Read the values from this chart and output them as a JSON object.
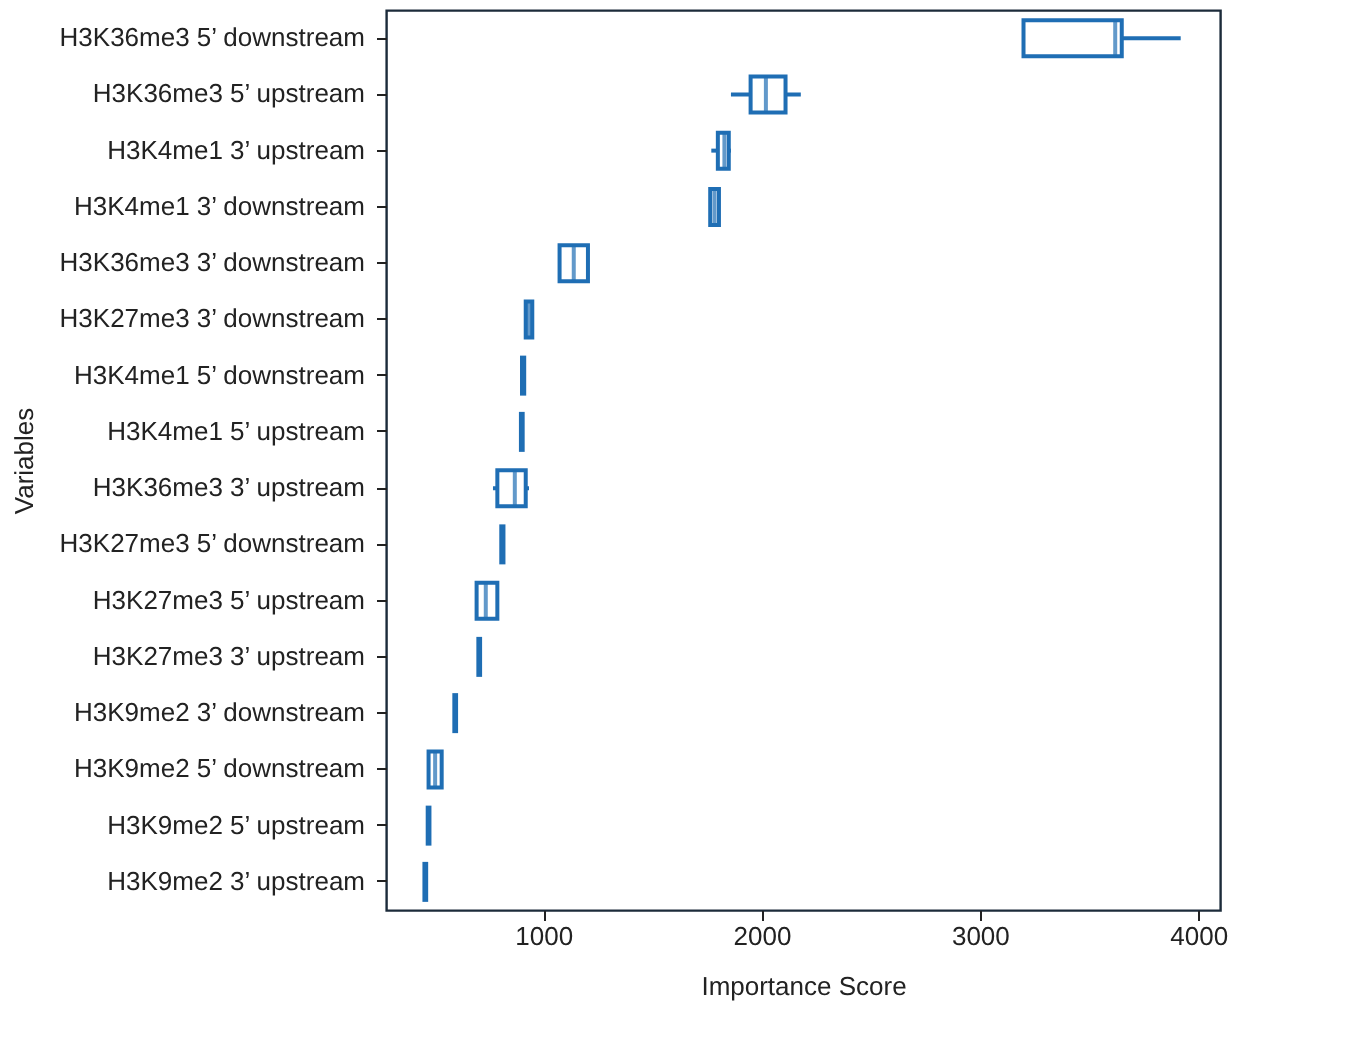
{
  "chart_data": {
    "type": "box",
    "orientation": "horizontal",
    "xlabel": "Importance Score",
    "ylabel": "Variables",
    "color": "#1f6eb4",
    "categories": [
      "H3K36me3 5’ downstream",
      "H3K36me3 5’ upstream",
      "H3K4me1 3’ upstream",
      "H3K4me1 3’ downstream",
      "H3K36me3 3’ downstream",
      "H3K27me3 3’ downstream",
      "H3K4me1 5’ downstream",
      "H3K4me1 5’ upstream",
      "H3K36me3 3’ upstream",
      "H3K27me3 5’ downstream",
      "H3K27me3 5’ upstream",
      "H3K27me3 3’ upstream",
      "H3K9me2 3’ downstream",
      "H3K9me2 5’ downstream",
      "H3K9me2 5’ upstream",
      "H3K9me2 3’ upstream"
    ],
    "boxes": [
      {
        "low": 3200,
        "q1": 3200,
        "median": 3620,
        "q3": 3650,
        "high": 3920
      },
      {
        "low": 1860,
        "q1": 1950,
        "median": 2020,
        "q3": 2110,
        "high": 2180
      },
      {
        "low": 1770,
        "q1": 1800,
        "median": 1830,
        "q3": 1850,
        "high": 1860
      },
      {
        "low": 1760,
        "q1": 1765,
        "median": 1785,
        "q3": 1805,
        "high": 1810
      },
      {
        "low": 1070,
        "q1": 1075,
        "median": 1140,
        "q3": 1205,
        "high": 1210
      },
      {
        "low": 915,
        "q1": 920,
        "median": 935,
        "q3": 950,
        "high": 955
      },
      {
        "low": 900,
        "q1": 903,
        "median": 908,
        "q3": 913,
        "high": 916
      },
      {
        "low": 895,
        "q1": 898,
        "median": 902,
        "q3": 906,
        "high": 910
      },
      {
        "low": 770,
        "q1": 790,
        "median": 870,
        "q3": 920,
        "high": 935
      },
      {
        "low": 805,
        "q1": 808,
        "median": 813,
        "q3": 818,
        "high": 822
      },
      {
        "low": 690,
        "q1": 695,
        "median": 737,
        "q3": 790,
        "high": 795
      },
      {
        "low": 700,
        "q1": 703,
        "median": 707,
        "q3": 711,
        "high": 714
      },
      {
        "low": 590,
        "q1": 593,
        "median": 597,
        "q3": 601,
        "high": 604
      },
      {
        "low": 470,
        "q1": 475,
        "median": 505,
        "q3": 535,
        "high": 540
      },
      {
        "low": 468,
        "q1": 471,
        "median": 475,
        "q3": 479,
        "high": 482
      },
      {
        "low": 453,
        "q1": 456,
        "median": 460,
        "q3": 464,
        "high": 467
      }
    ],
    "xlim": [
      280,
      4100
    ],
    "xticks": [
      1000,
      2000,
      3000,
      4000
    ]
  }
}
